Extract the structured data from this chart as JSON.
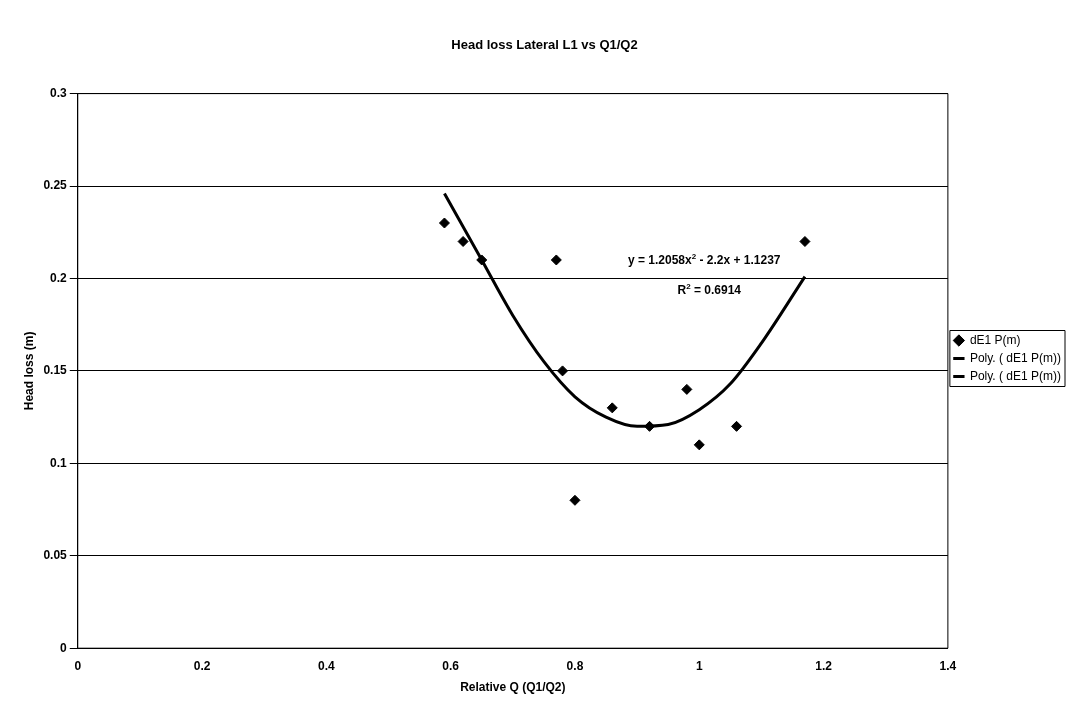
{
  "chart_data": {
    "type": "scatter",
    "title": "Head loss Lateral L1 vs Q1/Q2",
    "xlabel": "Relative Q (Q1/Q2)",
    "ylabel": "Head loss (m)",
    "xlim": [
      0,
      1.4
    ],
    "xticks": [
      0,
      0.2,
      0.4,
      0.6,
      0.8,
      1,
      1.2,
      1.4
    ],
    "ylim": [
      0,
      0.3
    ],
    "yticks": [
      0,
      0.05,
      0.1,
      0.15,
      0.2,
      0.25,
      0.3
    ],
    "grid": "y",
    "legend": "right",
    "annotations": [
      "y = 1.2058x$^{2}$ - 2.2x + 1.1237",
      "R$^{2}$ = 0.6914"
    ],
    "series": [
      {
        "name": "dE1 P(m)",
        "marker": "diamond",
        "color": "#000000",
        "x": [
          0.59,
          0.62,
          0.65,
          0.77,
          0.78,
          0.8,
          0.86,
          0.92,
          0.98,
          1.0,
          1.06,
          1.17
        ],
        "values": [
          0.23,
          0.22,
          0.21,
          0.21,
          0.15,
          0.08,
          0.13,
          0.12,
          0.14,
          0.11,
          0.12,
          0.22
        ]
      },
      {
        "name": "Poly. ( dE1 P(m))",
        "type": "line",
        "color": "#000000",
        "x": [
          0.59,
          0.65,
          0.7,
          0.75,
          0.8,
          0.85,
          0.9,
          0.95,
          1.0,
          1.05,
          1.1,
          1.17
        ],
        "values": [
          0.246,
          0.21,
          0.18,
          0.155,
          0.136,
          0.125,
          0.12,
          0.121,
          0.129,
          0.143,
          0.165,
          0.201
        ]
      },
      {
        "name": "Poly. ( dE1 P(m))",
        "type": "line",
        "color": "#000000"
      }
    ]
  }
}
